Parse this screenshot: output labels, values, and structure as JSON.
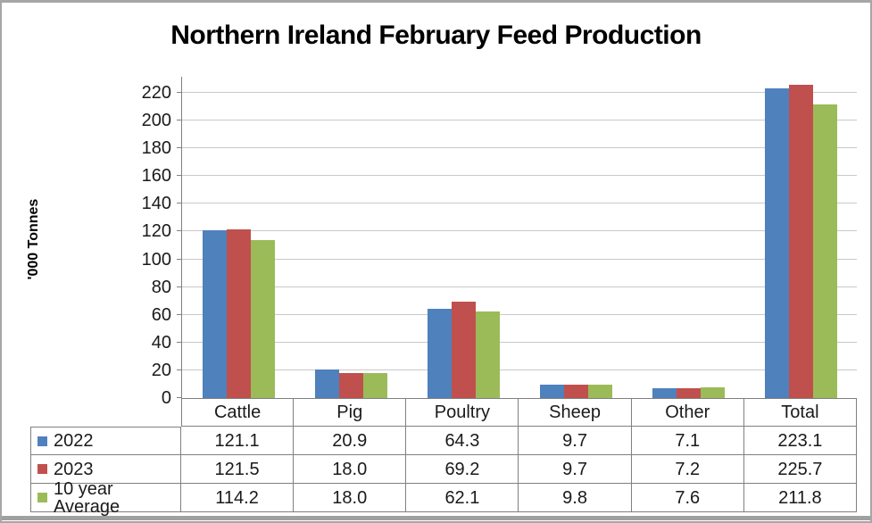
{
  "chart_data": {
    "type": "bar",
    "title": "Northern Ireland February Feed Production",
    "ylabel": "'000 Tonnes",
    "xlabel": "",
    "categories": [
      "Cattle",
      "Pig",
      "Poultry",
      "Sheep",
      "Other",
      "Total"
    ],
    "series": [
      {
        "name": "2022",
        "color": "#4f81bd",
        "values": [
          121.1,
          20.9,
          64.3,
          9.7,
          7.1,
          223.1
        ]
      },
      {
        "name": "2023",
        "color": "#c0504d",
        "values": [
          121.5,
          18.0,
          69.2,
          9.7,
          7.2,
          225.7
        ]
      },
      {
        "name": "10 year Average",
        "color": "#9bbb59",
        "values": [
          114.2,
          18.0,
          62.1,
          9.8,
          7.6,
          211.8
        ]
      }
    ],
    "yticks": [
      0,
      20,
      40,
      60,
      80,
      100,
      120,
      140,
      160,
      180,
      200,
      220
    ],
    "ylim": [
      0,
      231.6
    ],
    "grid": true,
    "legend_position": "data-table-left",
    "value_decimals": 1
  },
  "colors": {
    "gridline": "#c9c9c9",
    "axis": "#808080",
    "table_border": "#808080",
    "frame_border": "#a6a6a6",
    "text": "#1a1a1a",
    "title_text": "#000000"
  }
}
